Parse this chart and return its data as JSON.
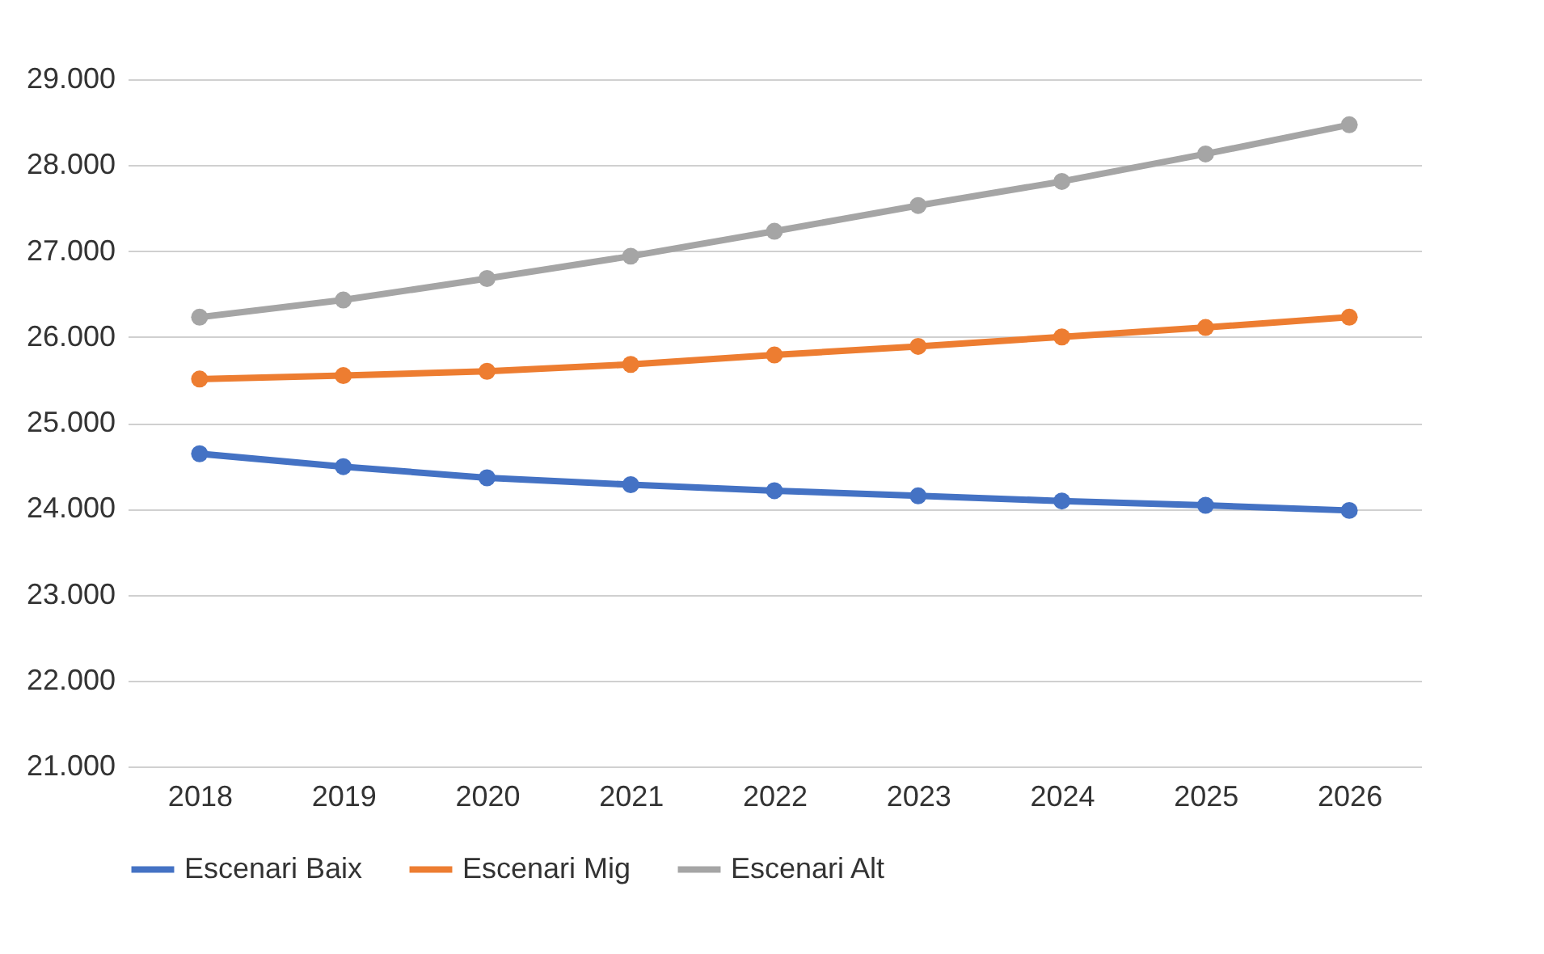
{
  "chart_data": {
    "type": "line",
    "categories": [
      "2018",
      "2019",
      "2020",
      "2021",
      "2022",
      "2023",
      "2024",
      "2025",
      "2026"
    ],
    "series": [
      {
        "name": "Escenari Baix",
        "color": "#4472c4",
        "values": [
          24640,
          24490,
          24360,
          24280,
          24210,
          24150,
          24090,
          24040,
          23980
        ]
      },
      {
        "name": "Escenari Mig",
        "color": "#ed7d31",
        "values": [
          25510,
          25550,
          25600,
          25680,
          25790,
          25890,
          26000,
          26110,
          26230
        ]
      },
      {
        "name": "Escenari Alt",
        "color": "#a5a5a5",
        "values": [
          26230,
          26430,
          26680,
          26940,
          27230,
          27530,
          27810,
          28130,
          28470
        ]
      }
    ],
    "ylim": [
      21000,
      29000
    ],
    "yticks": [
      {
        "value": 21000,
        "label": "21.000"
      },
      {
        "value": 22000,
        "label": "22.000"
      },
      {
        "value": 23000,
        "label": "23.000"
      },
      {
        "value": 24000,
        "label": "24.000"
      },
      {
        "value": 25000,
        "label": "25.000"
      },
      {
        "value": 26000,
        "label": "26.000"
      },
      {
        "value": 27000,
        "label": "27.000"
      },
      {
        "value": 28000,
        "label": "28.000"
      },
      {
        "value": 29000,
        "label": "29.000"
      }
    ],
    "grid": "y",
    "legend": "bottom",
    "marker": "circle",
    "line_style": "solid"
  }
}
